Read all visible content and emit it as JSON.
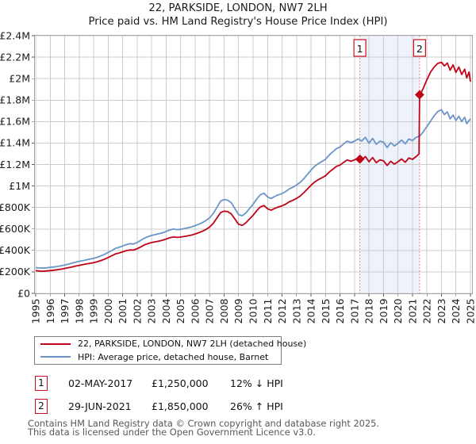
{
  "title": "22, PARKSIDE, LONDON, NW7 2LH",
  "subtitle": "Price paid vs. HM Land Registry's House Price Index (HPI)",
  "colors": {
    "price_line": "#c00418",
    "hpi_line": "#6b95c9",
    "event_line": "#ef6a6a",
    "event_box_border": "#cc0f1e",
    "shade": "#eef2fb",
    "grid": "#cccccc",
    "plot_border": "#a8a8a8",
    "tick_text": "#1b1b1b"
  },
  "legend": {
    "items": [
      {
        "label": "22, PARKSIDE, LONDON, NW7 2LH (detached house)",
        "color": "#c00418"
      },
      {
        "label": "HPI: Average price, detached house, Barnet",
        "color": "#6b95c9"
      }
    ]
  },
  "annotations": [
    {
      "num": "1",
      "date": "02-MAY-2017",
      "price": "£1,250,000",
      "hpi": "12% ↓ HPI"
    },
    {
      "num": "2",
      "date": "29-JUN-2021",
      "price": "£1,850,000",
      "hpi": "26% ↑ HPI"
    }
  ],
  "footer": {
    "line1": "Contains HM Land Registry data © Crown copyright and database right 2025.",
    "line2": "This data is licensed under the Open Government Licence v3.0."
  },
  "chart_data": {
    "type": "line",
    "x_range": [
      1995,
      2025
    ],
    "ylim_pounds": [
      0,
      2400000
    ],
    "grid": true,
    "x_ticks": [
      "1995",
      "1996",
      "1997",
      "1998",
      "1999",
      "2000",
      "2001",
      "2002",
      "2003",
      "2004",
      "2005",
      "2006",
      "2007",
      "2008",
      "2009",
      "2010",
      "2011",
      "2012",
      "2013",
      "2014",
      "2015",
      "2016",
      "2017",
      "2018",
      "2019",
      "2020",
      "2021",
      "2022",
      "2023",
      "2024",
      "2025"
    ],
    "y_ticks": [
      {
        "label": "£0",
        "value": 0
      },
      {
        "label": "£200K",
        "value": 200
      },
      {
        "label": "£400K",
        "value": 400
      },
      {
        "label": "£600K",
        "value": 600
      },
      {
        "label": "£800K",
        "value": 800
      },
      {
        "label": "£1M",
        "value": 1000
      },
      {
        "label": "£1.2M",
        "value": 1200
      },
      {
        "label": "£1.4M",
        "value": 1400
      },
      {
        "label": "£1.6M",
        "value": 1600
      },
      {
        "label": "£1.8M",
        "value": 1800
      },
      {
        "label": "£2M",
        "value": 2000
      },
      {
        "label": "£2.2M",
        "value": 2200
      },
      {
        "label": "£2.4M",
        "value": 2400
      }
    ],
    "value_unit": "thousand_pounds",
    "shaded_region": [
      2017.37,
      2021.49
    ],
    "transactions": [
      {
        "n": "1",
        "year": 2017.37,
        "value": 1250
      },
      {
        "n": "2",
        "year": 2021.49,
        "value": 1850
      }
    ],
    "series": [
      {
        "name": "HPI: Average price, detached house, Barnet",
        "color": "#6b95c9",
        "points": [
          [
            1995,
            240
          ],
          [
            1995.25,
            237
          ],
          [
            1995.5,
            235
          ],
          [
            1995.75,
            238
          ],
          [
            1996,
            242
          ],
          [
            1996.25,
            246
          ],
          [
            1996.5,
            251
          ],
          [
            1996.75,
            257
          ],
          [
            1997,
            264
          ],
          [
            1997.25,
            272
          ],
          [
            1997.5,
            281
          ],
          [
            1997.75,
            290
          ],
          [
            1998,
            298
          ],
          [
            1998.25,
            305
          ],
          [
            1998.5,
            312
          ],
          [
            1998.75,
            319
          ],
          [
            1999,
            326
          ],
          [
            1999.25,
            336
          ],
          [
            1999.5,
            349
          ],
          [
            1999.75,
            363
          ],
          [
            2000,
            381
          ],
          [
            2000.25,
            399
          ],
          [
            2000.5,
            419
          ],
          [
            2000.75,
            429
          ],
          [
            2001,
            441
          ],
          [
            2001.25,
            454
          ],
          [
            2001.5,
            462
          ],
          [
            2001.75,
            459
          ],
          [
            2002,
            474
          ],
          [
            2002.25,
            494
          ],
          [
            2002.5,
            514
          ],
          [
            2002.75,
            529
          ],
          [
            2003,
            539
          ],
          [
            2003.25,
            547
          ],
          [
            2003.5,
            555
          ],
          [
            2003.75,
            564
          ],
          [
            2004,
            577
          ],
          [
            2004.25,
            591
          ],
          [
            2004.5,
            599
          ],
          [
            2004.75,
            594
          ],
          [
            2005,
            597
          ],
          [
            2005.25,
            604
          ],
          [
            2005.5,
            611
          ],
          [
            2005.75,
            619
          ],
          [
            2006,
            631
          ],
          [
            2006.25,
            644
          ],
          [
            2006.5,
            659
          ],
          [
            2006.75,
            679
          ],
          [
            2007,
            704
          ],
          [
            2007.25,
            744
          ],
          [
            2007.5,
            799
          ],
          [
            2007.75,
            858
          ],
          [
            2008,
            874
          ],
          [
            2008.25,
            868
          ],
          [
            2008.5,
            843
          ],
          [
            2008.75,
            788
          ],
          [
            2009,
            734
          ],
          [
            2009.25,
            722
          ],
          [
            2009.5,
            749
          ],
          [
            2009.75,
            789
          ],
          [
            2010,
            829
          ],
          [
            2010.25,
            878
          ],
          [
            2010.5,
            918
          ],
          [
            2010.75,
            933
          ],
          [
            2011,
            898
          ],
          [
            2011.25,
            884
          ],
          [
            2011.5,
            903
          ],
          [
            2011.75,
            918
          ],
          [
            2012,
            929
          ],
          [
            2012.25,
            948
          ],
          [
            2012.5,
            973
          ],
          [
            2012.75,
            989
          ],
          [
            2013,
            1009
          ],
          [
            2013.25,
            1034
          ],
          [
            2013.5,
            1068
          ],
          [
            2013.75,
            1108
          ],
          [
            2014,
            1148
          ],
          [
            2014.25,
            1183
          ],
          [
            2014.5,
            1208
          ],
          [
            2014.75,
            1228
          ],
          [
            2015,
            1249
          ],
          [
            2015.25,
            1288
          ],
          [
            2015.5,
            1318
          ],
          [
            2015.75,
            1348
          ],
          [
            2016,
            1363
          ],
          [
            2016.25,
            1393
          ],
          [
            2016.5,
            1418
          ],
          [
            2016.75,
            1403
          ],
          [
            2017,
            1418
          ],
          [
            2017.25,
            1438
          ],
          [
            2017.5,
            1419
          ],
          [
            2017.75,
            1453
          ],
          [
            2018,
            1398
          ],
          [
            2018.25,
            1443
          ],
          [
            2018.5,
            1388
          ],
          [
            2018.75,
            1418
          ],
          [
            2019,
            1408
          ],
          [
            2019.25,
            1358
          ],
          [
            2019.5,
            1403
          ],
          [
            2019.75,
            1373
          ],
          [
            2020,
            1398
          ],
          [
            2020.25,
            1428
          ],
          [
            2020.5,
            1393
          ],
          [
            2020.75,
            1438
          ],
          [
            2021,
            1423
          ],
          [
            2021.25,
            1453
          ],
          [
            2021.5,
            1465
          ],
          [
            2021.75,
            1505
          ],
          [
            2022,
            1555
          ],
          [
            2022.25,
            1605
          ],
          [
            2022.5,
            1655
          ],
          [
            2022.75,
            1695
          ],
          [
            2023,
            1710
          ],
          [
            2023.2,
            1665
          ],
          [
            2023.4,
            1690
          ],
          [
            2023.6,
            1625
          ],
          [
            2023.8,
            1660
          ],
          [
            2024,
            1610
          ],
          [
            2024.2,
            1650
          ],
          [
            2024.4,
            1600
          ],
          [
            2024.6,
            1640
          ],
          [
            2024.75,
            1580
          ],
          [
            2024.9,
            1610
          ],
          [
            2025,
            1625
          ]
        ]
      },
      {
        "name": "22, PARKSIDE, LONDON, NW7 2LH (detached house)",
        "color": "#c00418",
        "points": [
          [
            1995,
            211
          ],
          [
            1995.25,
            208
          ],
          [
            1995.5,
            206
          ],
          [
            1995.75,
            209
          ],
          [
            1996,
            212
          ],
          [
            1996.25,
            216
          ],
          [
            1996.5,
            220
          ],
          [
            1996.75,
            225
          ],
          [
            1997,
            232
          ],
          [
            1997.25,
            239
          ],
          [
            1997.5,
            246
          ],
          [
            1997.75,
            254
          ],
          [
            1998,
            261
          ],
          [
            1998.25,
            267
          ],
          [
            1998.5,
            274
          ],
          [
            1998.75,
            280
          ],
          [
            1999,
            286
          ],
          [
            1999.25,
            295
          ],
          [
            1999.5,
            306
          ],
          [
            1999.75,
            318
          ],
          [
            2000,
            334
          ],
          [
            2000.25,
            350
          ],
          [
            2000.5,
            367
          ],
          [
            2000.75,
            376
          ],
          [
            2001,
            387
          ],
          [
            2001.25,
            398
          ],
          [
            2001.5,
            405
          ],
          [
            2001.75,
            403
          ],
          [
            2002,
            416
          ],
          [
            2002.25,
            433
          ],
          [
            2002.5,
            451
          ],
          [
            2002.75,
            464
          ],
          [
            2003,
            473
          ],
          [
            2003.25,
            480
          ],
          [
            2003.5,
            487
          ],
          [
            2003.75,
            495
          ],
          [
            2004,
            506
          ],
          [
            2004.25,
            518
          ],
          [
            2004.5,
            525
          ],
          [
            2004.75,
            521
          ],
          [
            2005,
            524
          ],
          [
            2005.25,
            530
          ],
          [
            2005.5,
            536
          ],
          [
            2005.75,
            543
          ],
          [
            2006,
            553
          ],
          [
            2006.25,
            565
          ],
          [
            2006.5,
            578
          ],
          [
            2006.75,
            595
          ],
          [
            2007,
            617
          ],
          [
            2007.25,
            652
          ],
          [
            2007.5,
            701
          ],
          [
            2007.75,
            752
          ],
          [
            2008,
            766
          ],
          [
            2008.25,
            761
          ],
          [
            2008.5,
            739
          ],
          [
            2008.75,
            691
          ],
          [
            2009,
            644
          ],
          [
            2009.25,
            633
          ],
          [
            2009.5,
            657
          ],
          [
            2009.75,
            692
          ],
          [
            2010,
            727
          ],
          [
            2010.25,
            770
          ],
          [
            2010.5,
            805
          ],
          [
            2010.75,
            818
          ],
          [
            2011,
            788
          ],
          [
            2011.25,
            775
          ],
          [
            2011.5,
            792
          ],
          [
            2011.75,
            805
          ],
          [
            2012,
            815
          ],
          [
            2012.25,
            831
          ],
          [
            2012.5,
            853
          ],
          [
            2012.75,
            867
          ],
          [
            2013,
            885
          ],
          [
            2013.25,
            907
          ],
          [
            2013.5,
            937
          ],
          [
            2013.75,
            972
          ],
          [
            2014,
            1007
          ],
          [
            2014.25,
            1037
          ],
          [
            2014.5,
            1059
          ],
          [
            2014.75,
            1077
          ],
          [
            2015,
            1095
          ],
          [
            2015.25,
            1129
          ],
          [
            2015.5,
            1156
          ],
          [
            2015.75,
            1182
          ],
          [
            2016,
            1195
          ],
          [
            2016.25,
            1221
          ],
          [
            2016.5,
            1243
          ],
          [
            2016.75,
            1230
          ],
          [
            2017,
            1243
          ],
          [
            2017.25,
            1261
          ],
          [
            2017.37,
            1250
          ],
          [
            2017.5,
            1244
          ],
          [
            2017.75,
            1274
          ],
          [
            2018,
            1226
          ],
          [
            2018.25,
            1265
          ],
          [
            2018.5,
            1217
          ],
          [
            2018.75,
            1243
          ],
          [
            2019,
            1235
          ],
          [
            2019.25,
            1191
          ],
          [
            2019.5,
            1230
          ],
          [
            2019.75,
            1204
          ],
          [
            2020,
            1226
          ],
          [
            2020.25,
            1252
          ],
          [
            2020.5,
            1221
          ],
          [
            2020.75,
            1261
          ],
          [
            2021,
            1248
          ],
          [
            2021.25,
            1274
          ],
          [
            2021.45,
            1298
          ],
          [
            2021.49,
            1850
          ],
          [
            2021.6,
            1872
          ],
          [
            2021.75,
            1912
          ],
          [
            2022,
            1992
          ],
          [
            2022.25,
            2062
          ],
          [
            2022.5,
            2108
          ],
          [
            2022.75,
            2142
          ],
          [
            2023,
            2152
          ],
          [
            2023.2,
            2118
          ],
          [
            2023.4,
            2145
          ],
          [
            2023.6,
            2078
          ],
          [
            2023.8,
            2128
          ],
          [
            2024,
            2058
          ],
          [
            2024.2,
            2108
          ],
          [
            2024.4,
            2038
          ],
          [
            2024.6,
            2088
          ],
          [
            2024.75,
            2008
          ],
          [
            2024.9,
            2062
          ],
          [
            2025,
            1972
          ]
        ]
      }
    ]
  }
}
